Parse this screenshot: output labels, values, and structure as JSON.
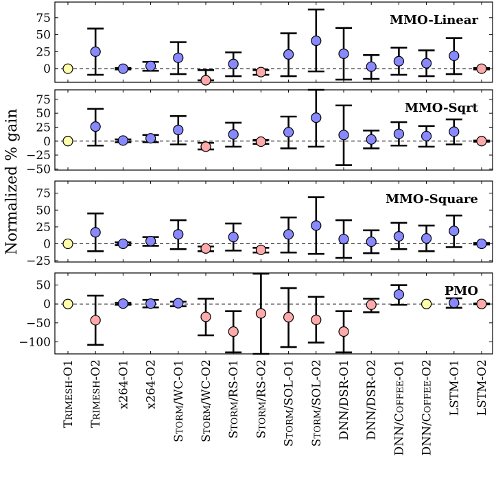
{
  "chart_data": {
    "type": "scatter",
    "ylabel": "Normalized % gain",
    "reference_line": 0,
    "categories": [
      {
        "name": "Trimesh-O1",
        "parts": [
          {
            "t": "T",
            "sc": false
          },
          {
            "t": "rimesh",
            "sc": true
          },
          {
            "t": "-O1",
            "sc": false
          }
        ]
      },
      {
        "name": "Trimesh-O2",
        "parts": [
          {
            "t": "T",
            "sc": false
          },
          {
            "t": "rimesh",
            "sc": true
          },
          {
            "t": "-O2",
            "sc": false
          }
        ]
      },
      {
        "name": "x264-O1",
        "parts": [
          {
            "t": "x264-O1",
            "sc": false
          }
        ]
      },
      {
        "name": "x264-O2",
        "parts": [
          {
            "t": "x264-O2",
            "sc": false
          }
        ]
      },
      {
        "name": "Storm/WC-O1",
        "parts": [
          {
            "t": "S",
            "sc": false
          },
          {
            "t": "torm",
            "sc": true
          },
          {
            "t": "/WC-O1",
            "sc": false
          }
        ]
      },
      {
        "name": "Storm/WC-O2",
        "parts": [
          {
            "t": "S",
            "sc": false
          },
          {
            "t": "torm",
            "sc": true
          },
          {
            "t": "/WC-O2",
            "sc": false
          }
        ]
      },
      {
        "name": "Storm/RS-O1",
        "parts": [
          {
            "t": "S",
            "sc": false
          },
          {
            "t": "torm",
            "sc": true
          },
          {
            "t": "/RS-O1",
            "sc": false
          }
        ]
      },
      {
        "name": "Storm/RS-O2",
        "parts": [
          {
            "t": "S",
            "sc": false
          },
          {
            "t": "torm",
            "sc": true
          },
          {
            "t": "/RS-O2",
            "sc": false
          }
        ]
      },
      {
        "name": "Storm/SOL-O1",
        "parts": [
          {
            "t": "S",
            "sc": false
          },
          {
            "t": "torm",
            "sc": true
          },
          {
            "t": "/SOL-O1",
            "sc": false
          }
        ]
      },
      {
        "name": "Storm/SOL-O2",
        "parts": [
          {
            "t": "S",
            "sc": false
          },
          {
            "t": "torm",
            "sc": true
          },
          {
            "t": "/SOL-O2",
            "sc": false
          }
        ]
      },
      {
        "name": "DNN/DSR-O1",
        "parts": [
          {
            "t": "DNN/DSR-O1",
            "sc": false
          }
        ]
      },
      {
        "name": "DNN/DSR-O2",
        "parts": [
          {
            "t": "DNN/DSR-O2",
            "sc": false
          }
        ]
      },
      {
        "name": "DNN/Coffee-O1",
        "parts": [
          {
            "t": "DNN/C",
            "sc": false
          },
          {
            "t": "offee",
            "sc": true
          },
          {
            "t": "-O1",
            "sc": false
          }
        ]
      },
      {
        "name": "DNN/Coffee-O2",
        "parts": [
          {
            "t": "DNN/C",
            "sc": false
          },
          {
            "t": "offee",
            "sc": true
          },
          {
            "t": "-O2",
            "sc": false
          }
        ]
      },
      {
        "name": "LSTM-O1",
        "parts": [
          {
            "t": "LSTM-O1",
            "sc": false
          }
        ]
      },
      {
        "name": "LSTM-O2",
        "parts": [
          {
            "t": "LSTM-O2",
            "sc": false
          }
        ]
      }
    ],
    "colors": {
      "baseline": "#ffffaa",
      "gain": "#8888ff",
      "loss": "#ffaaaa"
    },
    "panels": [
      {
        "title": "MMO-Linear",
        "ylim": [
          -20,
          98
        ],
        "yticks": [
          0,
          25,
          50,
          75
        ],
        "points": [
          {
            "y": 0,
            "low": 0,
            "high": 0,
            "kind": "baseline"
          },
          {
            "y": 25,
            "low": -9,
            "high": 59,
            "kind": "gain"
          },
          {
            "y": 0,
            "low": -1,
            "high": 1,
            "kind": "gain"
          },
          {
            "y": 4,
            "low": -3,
            "high": 10,
            "kind": "gain"
          },
          {
            "y": 16,
            "low": -8,
            "high": 39,
            "kind": "gain"
          },
          {
            "y": -17,
            "low": -17,
            "high": -2,
            "kind": "loss"
          },
          {
            "y": 7,
            "low": -11,
            "high": 24,
            "kind": "gain"
          },
          {
            "y": -5,
            "low": -9,
            "high": -2,
            "kind": "loss"
          },
          {
            "y": 21,
            "low": -11,
            "high": 52,
            "kind": "gain"
          },
          {
            "y": 41,
            "low": -4,
            "high": 87,
            "kind": "gain"
          },
          {
            "y": 22,
            "low": -16,
            "high": 60,
            "kind": "gain"
          },
          {
            "y": 3,
            "low": -15,
            "high": 20,
            "kind": "gain"
          },
          {
            "y": 11,
            "low": -9,
            "high": 31,
            "kind": "gain"
          },
          {
            "y": 8,
            "low": -11,
            "high": 27,
            "kind": "gain"
          },
          {
            "y": 19,
            "low": -8,
            "high": 45,
            "kind": "gain"
          },
          {
            "y": 0,
            "low": -1,
            "high": 1,
            "kind": "loss"
          }
        ]
      },
      {
        "title": "MMO-Sqrt",
        "ylim": [
          -52,
          92
        ],
        "yticks": [
          -50,
          -25,
          0,
          25,
          50,
          75
        ],
        "points": [
          {
            "y": 0,
            "low": 0,
            "high": 0,
            "kind": "baseline"
          },
          {
            "y": 26,
            "low": -8,
            "high": 58,
            "kind": "gain"
          },
          {
            "y": 1,
            "low": -2,
            "high": 3,
            "kind": "gain"
          },
          {
            "y": 5,
            "low": -2,
            "high": 11,
            "kind": "gain"
          },
          {
            "y": 20,
            "low": -6,
            "high": 45,
            "kind": "gain"
          },
          {
            "y": -10,
            "low": -15,
            "high": -3,
            "kind": "loss"
          },
          {
            "y": 12,
            "low": -10,
            "high": 33,
            "kind": "gain"
          },
          {
            "y": -1,
            "low": -5,
            "high": 2,
            "kind": "loss"
          },
          {
            "y": 16,
            "low": -13,
            "high": 44,
            "kind": "gain"
          },
          {
            "y": 42,
            "low": -10,
            "high": 92,
            "kind": "gain"
          },
          {
            "y": 11,
            "low": -43,
            "high": 64,
            "kind": "gain"
          },
          {
            "y": 3,
            "low": -13,
            "high": 19,
            "kind": "gain"
          },
          {
            "y": 13,
            "low": -8,
            "high": 34,
            "kind": "gain"
          },
          {
            "y": 9,
            "low": -10,
            "high": 27,
            "kind": "gain"
          },
          {
            "y": 17,
            "low": -6,
            "high": 39,
            "kind": "gain"
          },
          {
            "y": 0,
            "low": -1,
            "high": 1,
            "kind": "loss"
          }
        ]
      },
      {
        "title": "MMO-Square",
        "ylim": [
          -27,
          93
        ],
        "yticks": [
          -25,
          0,
          25,
          50,
          75
        ],
        "points": [
          {
            "y": 0,
            "low": 0,
            "high": 0,
            "kind": "baseline"
          },
          {
            "y": 17,
            "low": -11,
            "high": 45,
            "kind": "gain"
          },
          {
            "y": 0,
            "low": -2,
            "high": 2,
            "kind": "gain"
          },
          {
            "y": 4,
            "low": -3,
            "high": 10,
            "kind": "gain"
          },
          {
            "y": 14,
            "low": -8,
            "high": 35,
            "kind": "gain"
          },
          {
            "y": -7,
            "low": -11,
            "high": -4,
            "kind": "loss"
          },
          {
            "y": 10,
            "low": -10,
            "high": 30,
            "kind": "gain"
          },
          {
            "y": -9,
            "low": -13,
            "high": -6,
            "kind": "loss"
          },
          {
            "y": 14,
            "low": -13,
            "high": 39,
            "kind": "gain"
          },
          {
            "y": 27,
            "low": -15,
            "high": 69,
            "kind": "gain"
          },
          {
            "y": 7,
            "low": -21,
            "high": 35,
            "kind": "gain"
          },
          {
            "y": 3,
            "low": -14,
            "high": 20,
            "kind": "gain"
          },
          {
            "y": 11,
            "low": -8,
            "high": 31,
            "kind": "gain"
          },
          {
            "y": 8,
            "low": -11,
            "high": 27,
            "kind": "gain"
          },
          {
            "y": 19,
            "low": -5,
            "high": 42,
            "kind": "gain"
          },
          {
            "y": 0,
            "low": -1,
            "high": 1,
            "kind": "gain"
          }
        ]
      },
      {
        "title": "PMO",
        "ylim": [
          -132,
          82
        ],
        "yticks": [
          -100,
          -50,
          0,
          50
        ],
        "points": [
          {
            "y": 0,
            "low": 0,
            "high": 0,
            "kind": "baseline"
          },
          {
            "y": -43,
            "low": -108,
            "high": 22,
            "kind": "loss"
          },
          {
            "y": 1,
            "low": -2,
            "high": 3,
            "kind": "gain"
          },
          {
            "y": 1,
            "low": -9,
            "high": 11,
            "kind": "gain"
          },
          {
            "y": 2,
            "low": -6,
            "high": 6,
            "kind": "gain"
          },
          {
            "y": -34,
            "low": -83,
            "high": 14,
            "kind": "loss"
          },
          {
            "y": -73,
            "low": -128,
            "high": -19,
            "kind": "loss"
          },
          {
            "y": -25,
            "low": -132,
            "high": 80,
            "kind": "loss"
          },
          {
            "y": -35,
            "low": -114,
            "high": 42,
            "kind": "loss"
          },
          {
            "y": -42,
            "low": -102,
            "high": 19,
            "kind": "loss"
          },
          {
            "y": -73,
            "low": -128,
            "high": -19,
            "kind": "loss"
          },
          {
            "y": -2,
            "low": -22,
            "high": 14,
            "kind": "loss"
          },
          {
            "y": 25,
            "low": -2,
            "high": 50,
            "kind": "gain"
          },
          {
            "y": 0,
            "low": 0,
            "high": 0,
            "kind": "baseline"
          },
          {
            "y": 3,
            "low": -10,
            "high": 15,
            "kind": "gain"
          },
          {
            "y": 0,
            "low": -1,
            "high": 1,
            "kind": "loss"
          }
        ]
      }
    ]
  }
}
